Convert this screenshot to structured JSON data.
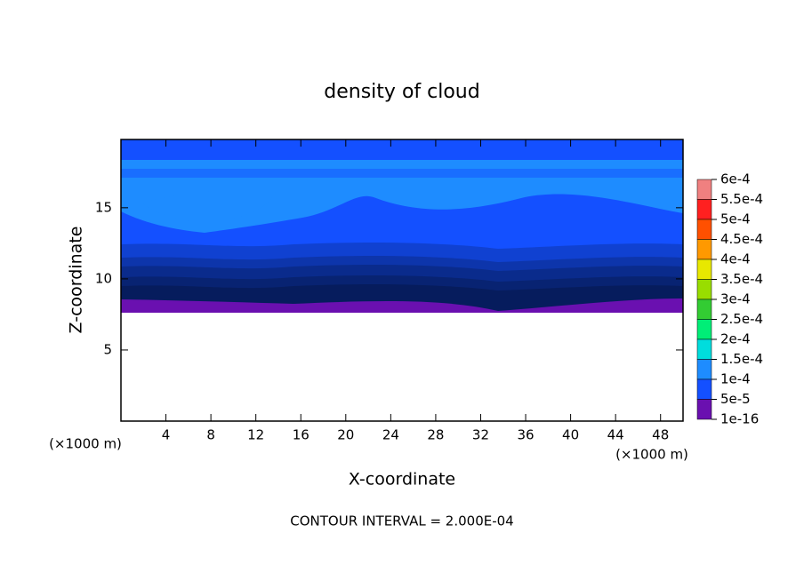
{
  "chart_data": {
    "type": "contour",
    "title": "density of cloud",
    "x_label": "X-coordinate",
    "y_label": "Z-coordinate",
    "x_unit": "(×1000 m)",
    "y_unit": "(×1000 m)",
    "footer": "CONTOUR INTERVAL = 2.000E-04",
    "xlim": [
      0,
      50
    ],
    "xticks": [
      4,
      8,
      12,
      16,
      20,
      24,
      28,
      32,
      36,
      40,
      44,
      48
    ],
    "ylim": [
      0,
      19.8
    ],
    "yticks": [
      5,
      10,
      15
    ],
    "colorbar": {
      "levels": [
        {
          "value": 0.0006,
          "label": "6e-4"
        },
        {
          "value": 0.00055,
          "label": "5.5e-4"
        },
        {
          "value": 0.0005,
          "label": "5e-4"
        },
        {
          "value": 0.00045,
          "label": "4.5e-4"
        },
        {
          "value": 0.0004,
          "label": "4e-4"
        },
        {
          "value": 0.00035,
          "label": "3.5e-4"
        },
        {
          "value": 0.0003,
          "label": "3e-4"
        },
        {
          "value": 0.00025,
          "label": "2.5e-4"
        },
        {
          "value": 0.0002,
          "label": "2e-4"
        },
        {
          "value": 0.00015,
          "label": "1.5e-4"
        },
        {
          "value": 0.0001,
          "label": "1e-4"
        },
        {
          "value": 5e-05,
          "label": "5e-5"
        },
        {
          "value": 1e-16,
          "label": "1e-16"
        }
      ],
      "colors": [
        "#f08080",
        "#ff2020",
        "#ff5000",
        "#ff9900",
        "#e8e800",
        "#99dd00",
        "#33cc33",
        "#00ee77",
        "#00dddd",
        "#1e8cff",
        "#1450ff",
        "#6a10b0"
      ]
    }
  }
}
